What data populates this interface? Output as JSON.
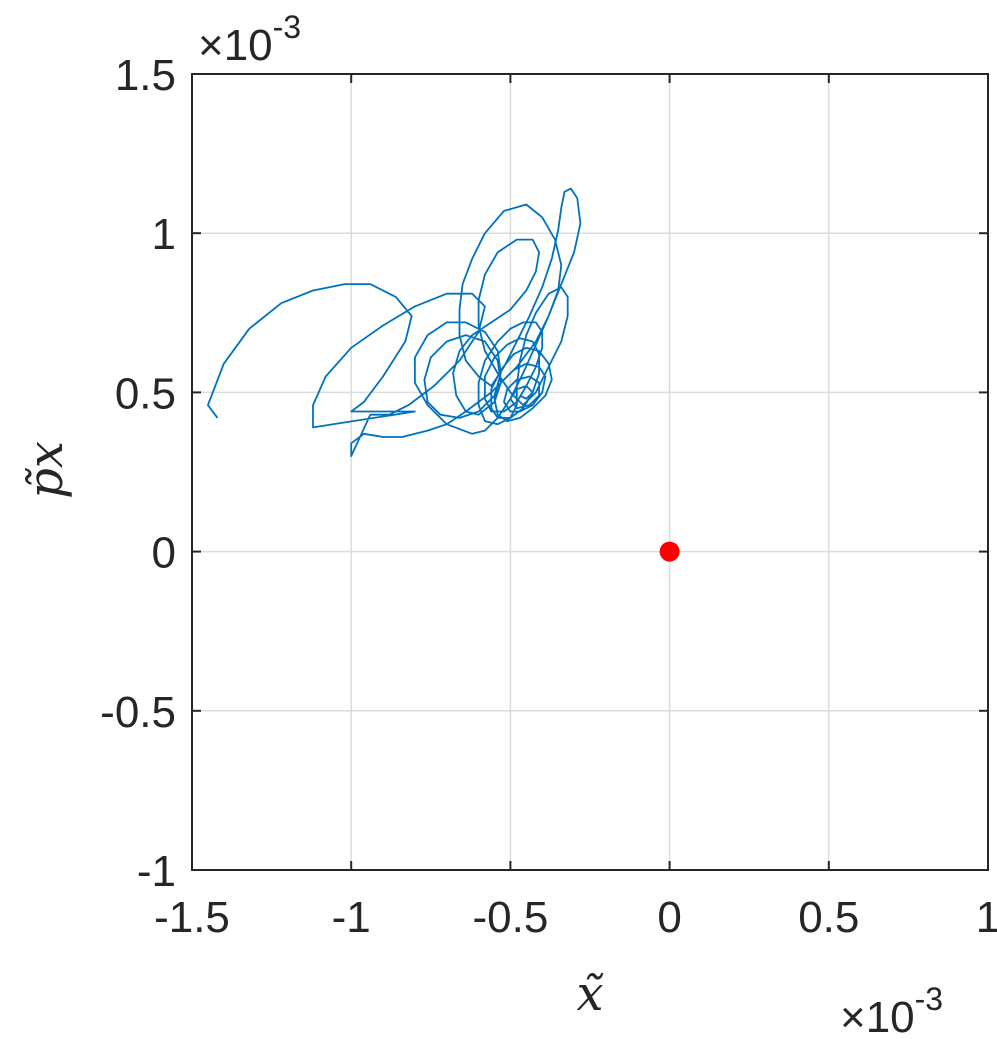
{
  "chart_data": {
    "type": "line",
    "xlabel": "x̃",
    "ylabel": "p̃x",
    "xlim": [
      -1.5,
      1.0
    ],
    "ylim": [
      -1.0,
      1.5
    ],
    "xticks": [
      -1.5,
      -1.0,
      -0.5,
      0,
      0.5,
      1.0
    ],
    "yticks": [
      -1.0,
      -0.5,
      0,
      0.5,
      1.0,
      1.5
    ],
    "xtick_labels": [
      "-1.5",
      "-1",
      "-0.5",
      "0",
      "0.5",
      "1"
    ],
    "ytick_labels": [
      "-1",
      "-0.5",
      "0",
      "0.5",
      "1",
      "1.5"
    ],
    "x_exponent_label": "×10",
    "x_exponent_power": "-3",
    "y_exponent_label": "×10",
    "y_exponent_power": "-3",
    "grid": true,
    "colors": {
      "trajectory": "#0072bd",
      "fixed_point": "#ff0000",
      "grid": "#dcdcdc",
      "axes": "#262626"
    },
    "series": [
      {
        "type": "line",
        "points": [
          [
            -1.42,
            0.42
          ],
          [
            -1.45,
            0.46
          ],
          [
            -1.4,
            0.59
          ],
          [
            -1.32,
            0.7
          ],
          [
            -1.22,
            0.78
          ],
          [
            -1.12,
            0.82
          ],
          [
            -1.02,
            0.84
          ],
          [
            -0.94,
            0.84
          ],
          [
            -0.86,
            0.8
          ],
          [
            -0.81,
            0.74
          ],
          [
            -0.83,
            0.66
          ],
          [
            -0.9,
            0.55
          ],
          [
            -0.96,
            0.47
          ],
          [
            -1.0,
            0.44
          ],
          [
            -0.9,
            0.44
          ],
          [
            -0.8,
            0.44
          ],
          [
            -1.12,
            0.39
          ],
          [
            -1.12,
            0.46
          ],
          [
            -1.08,
            0.55
          ],
          [
            -1.0,
            0.64
          ],
          [
            -0.9,
            0.71
          ],
          [
            -0.8,
            0.77
          ],
          [
            -0.7,
            0.81
          ],
          [
            -0.62,
            0.81
          ],
          [
            -0.58,
            0.77
          ],
          [
            -0.6,
            0.69
          ],
          [
            -0.66,
            0.6
          ],
          [
            -0.74,
            0.52
          ],
          [
            -0.82,
            0.46
          ],
          [
            -0.88,
            0.43
          ],
          [
            -0.94,
            0.43
          ],
          [
            -1.0,
            0.3
          ],
          [
            -1.0,
            0.34
          ],
          [
            -0.96,
            0.37
          ],
          [
            -0.9,
            0.36
          ],
          [
            -0.84,
            0.36
          ],
          [
            -0.76,
            0.38
          ],
          [
            -0.7,
            0.4
          ],
          [
            -0.64,
            0.44
          ],
          [
            -0.56,
            0.5
          ],
          [
            -0.48,
            0.58
          ],
          [
            -0.42,
            0.66
          ],
          [
            -0.38,
            0.74
          ],
          [
            -0.35,
            0.82
          ],
          [
            -0.34,
            0.9
          ],
          [
            -0.36,
            0.98
          ],
          [
            -0.4,
            1.05
          ],
          [
            -0.45,
            1.09
          ],
          [
            -0.52,
            1.07
          ],
          [
            -0.58,
            1.0
          ],
          [
            -0.62,
            0.92
          ],
          [
            -0.65,
            0.84
          ],
          [
            -0.66,
            0.76
          ],
          [
            -0.66,
            0.68
          ],
          [
            -0.64,
            0.6
          ],
          [
            -0.6,
            0.55
          ],
          [
            -0.56,
            0.52
          ],
          [
            -0.52,
            0.58
          ],
          [
            -0.48,
            0.66
          ],
          [
            -0.44,
            0.74
          ],
          [
            -0.4,
            0.83
          ],
          [
            -0.37,
            0.92
          ],
          [
            -0.35,
            1.01
          ],
          [
            -0.34,
            1.08
          ],
          [
            -0.33,
            1.13
          ],
          [
            -0.31,
            1.14
          ],
          [
            -0.29,
            1.11
          ],
          [
            -0.28,
            1.03
          ],
          [
            -0.3,
            0.94
          ],
          [
            -0.34,
            0.84
          ],
          [
            -0.38,
            0.74
          ],
          [
            -0.42,
            0.65
          ],
          [
            -0.46,
            0.56
          ],
          [
            -0.5,
            0.48
          ],
          [
            -0.54,
            0.42
          ],
          [
            -0.58,
            0.38
          ],
          [
            -0.62,
            0.37
          ],
          [
            -0.7,
            0.4
          ],
          [
            -0.76,
            0.46
          ],
          [
            -0.8,
            0.53
          ],
          [
            -0.8,
            0.61
          ],
          [
            -0.76,
            0.68
          ],
          [
            -0.7,
            0.72
          ],
          [
            -0.64,
            0.72
          ],
          [
            -0.58,
            0.69
          ],
          [
            -0.54,
            0.63
          ],
          [
            -0.53,
            0.56
          ],
          [
            -0.55,
            0.49
          ],
          [
            -0.6,
            0.44
          ],
          [
            -0.66,
            0.42
          ],
          [
            -0.72,
            0.43
          ],
          [
            -0.76,
            0.47
          ],
          [
            -0.77,
            0.54
          ],
          [
            -0.75,
            0.61
          ],
          [
            -0.7,
            0.66
          ],
          [
            -0.64,
            0.68
          ],
          [
            -0.58,
            0.66
          ],
          [
            -0.54,
            0.6
          ],
          [
            -0.53,
            0.53
          ],
          [
            -0.55,
            0.47
          ],
          [
            -0.6,
            0.43
          ],
          [
            -0.64,
            0.44
          ],
          [
            -0.67,
            0.49
          ],
          [
            -0.68,
            0.56
          ],
          [
            -0.66,
            0.63
          ],
          [
            -0.62,
            0.68
          ],
          [
            -0.56,
            0.72
          ],
          [
            -0.5,
            0.76
          ],
          [
            -0.45,
            0.82
          ],
          [
            -0.42,
            0.88
          ],
          [
            -0.41,
            0.94
          ],
          [
            -0.43,
            0.98
          ],
          [
            -0.48,
            0.98
          ],
          [
            -0.54,
            0.94
          ],
          [
            -0.58,
            0.87
          ],
          [
            -0.6,
            0.79
          ],
          [
            -0.6,
            0.71
          ],
          [
            -0.58,
            0.63
          ],
          [
            -0.54,
            0.56
          ],
          [
            -0.5,
            0.5
          ],
          [
            -0.46,
            0.46
          ],
          [
            -0.42,
            0.5
          ],
          [
            -0.38,
            0.58
          ],
          [
            -0.34,
            0.66
          ],
          [
            -0.32,
            0.74
          ],
          [
            -0.32,
            0.8
          ],
          [
            -0.34,
            0.83
          ],
          [
            -0.38,
            0.81
          ],
          [
            -0.42,
            0.75
          ],
          [
            -0.45,
            0.68
          ],
          [
            -0.47,
            0.6
          ],
          [
            -0.48,
            0.52
          ],
          [
            -0.48,
            0.46
          ],
          [
            -0.5,
            0.42
          ],
          [
            -0.54,
            0.4
          ],
          [
            -0.58,
            0.41
          ],
          [
            -0.6,
            0.46
          ],
          [
            -0.6,
            0.53
          ],
          [
            -0.58,
            0.6
          ],
          [
            -0.54,
            0.66
          ],
          [
            -0.5,
            0.7
          ],
          [
            -0.46,
            0.72
          ],
          [
            -0.42,
            0.72
          ],
          [
            -0.4,
            0.69
          ],
          [
            -0.4,
            0.64
          ],
          [
            -0.42,
            0.58
          ],
          [
            -0.45,
            0.52
          ],
          [
            -0.48,
            0.47
          ],
          [
            -0.52,
            0.44
          ],
          [
            -0.56,
            0.44
          ],
          [
            -0.58,
            0.48
          ],
          [
            -0.58,
            0.55
          ],
          [
            -0.55,
            0.61
          ],
          [
            -0.51,
            0.65
          ],
          [
            -0.47,
            0.67
          ],
          [
            -0.43,
            0.66
          ],
          [
            -0.41,
            0.62
          ],
          [
            -0.41,
            0.56
          ],
          [
            -0.43,
            0.5
          ],
          [
            -0.46,
            0.45
          ],
          [
            -0.5,
            0.42
          ],
          [
            -0.54,
            0.42
          ],
          [
            -0.56,
            0.45
          ],
          [
            -0.56,
            0.51
          ],
          [
            -0.53,
            0.57
          ],
          [
            -0.49,
            0.62
          ],
          [
            -0.45,
            0.64
          ],
          [
            -0.41,
            0.63
          ],
          [
            -0.38,
            0.59
          ],
          [
            -0.37,
            0.54
          ],
          [
            -0.39,
            0.49
          ],
          [
            -0.43,
            0.45
          ],
          [
            -0.47,
            0.42
          ],
          [
            -0.51,
            0.41
          ],
          [
            -0.54,
            0.43
          ],
          [
            -0.55,
            0.48
          ],
          [
            -0.53,
            0.53
          ],
          [
            -0.49,
            0.57
          ],
          [
            -0.45,
            0.59
          ],
          [
            -0.41,
            0.58
          ],
          [
            -0.39,
            0.55
          ],
          [
            -0.4,
            0.5
          ],
          [
            -0.43,
            0.46
          ],
          [
            -0.47,
            0.44
          ],
          [
            -0.5,
            0.44
          ],
          [
            -0.52,
            0.47
          ],
          [
            -0.51,
            0.51
          ],
          [
            -0.48,
            0.54
          ],
          [
            -0.44,
            0.55
          ],
          [
            -0.41,
            0.53
          ],
          [
            -0.41,
            0.49
          ],
          [
            -0.44,
            0.46
          ],
          [
            -0.48,
            0.45
          ],
          [
            -0.5,
            0.48
          ],
          [
            -0.48,
            0.51
          ],
          [
            -0.45,
            0.52
          ],
          [
            -0.43,
            0.5
          ],
          [
            -0.45,
            0.48
          ],
          [
            -0.47,
            0.49
          ]
        ]
      },
      {
        "type": "scatter",
        "points": [
          [
            0,
            0
          ]
        ]
      }
    ]
  }
}
